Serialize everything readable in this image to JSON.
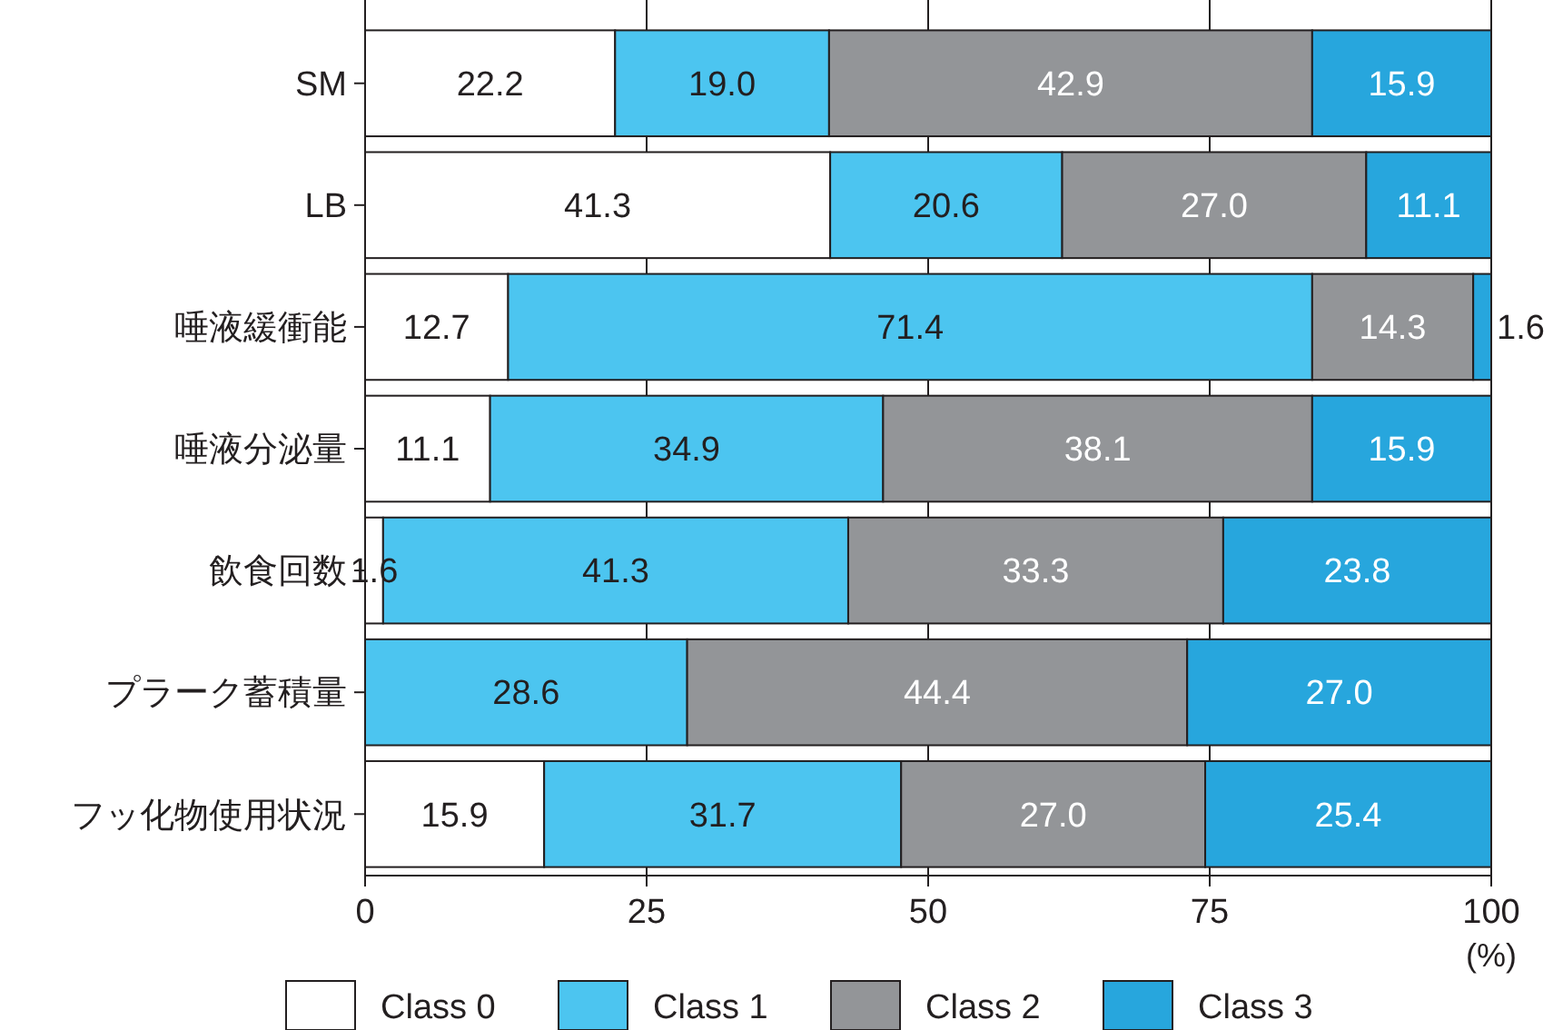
{
  "chart_data": {
    "type": "bar",
    "orientation": "horizontal",
    "stacked": true,
    "xlabel": "(%)",
    "categories": [
      "SM",
      "LB",
      "唾液緩衝能",
      "唾液分泌量",
      "飲食回数",
      "プラーク蓄積量",
      "フッ化物使用状況"
    ],
    "series": [
      {
        "name": "Class 0",
        "color": "#ffffff",
        "values": [
          22.2,
          41.3,
          12.7,
          11.1,
          1.6,
          0,
          15.9
        ],
        "value_labels": [
          "22.2",
          "41.3",
          "12.7",
          "11.1",
          "1.6",
          null,
          "15.9"
        ]
      },
      {
        "name": "Class 1",
        "color": "#4cc5f0",
        "values": [
          19.0,
          20.6,
          71.4,
          34.9,
          41.3,
          28.6,
          31.7
        ],
        "value_labels": [
          "19.0",
          "20.6",
          "71.4",
          "34.9",
          "41.3",
          "28.6",
          "31.7"
        ]
      },
      {
        "name": "Class 2",
        "color": "#939598",
        "values": [
          42.9,
          27.0,
          14.3,
          38.1,
          33.3,
          44.4,
          27.0
        ],
        "value_labels": [
          "42.9",
          "27.0",
          "14.3",
          "38.1",
          "33.3",
          "44.4",
          "27.0"
        ]
      },
      {
        "name": "Class 3",
        "color": "#27a6dd",
        "values": [
          15.9,
          11.1,
          1.6,
          15.9,
          23.8,
          27.0,
          25.4
        ],
        "value_labels": [
          "15.9",
          "11.1",
          "1.6",
          "15.9",
          "23.8",
          "27.0",
          "25.4"
        ]
      }
    ],
    "xlim": [
      0,
      100
    ],
    "xticks": [
      0,
      25,
      50,
      75,
      100
    ],
    "grid": "x",
    "legend": "bottom"
  }
}
